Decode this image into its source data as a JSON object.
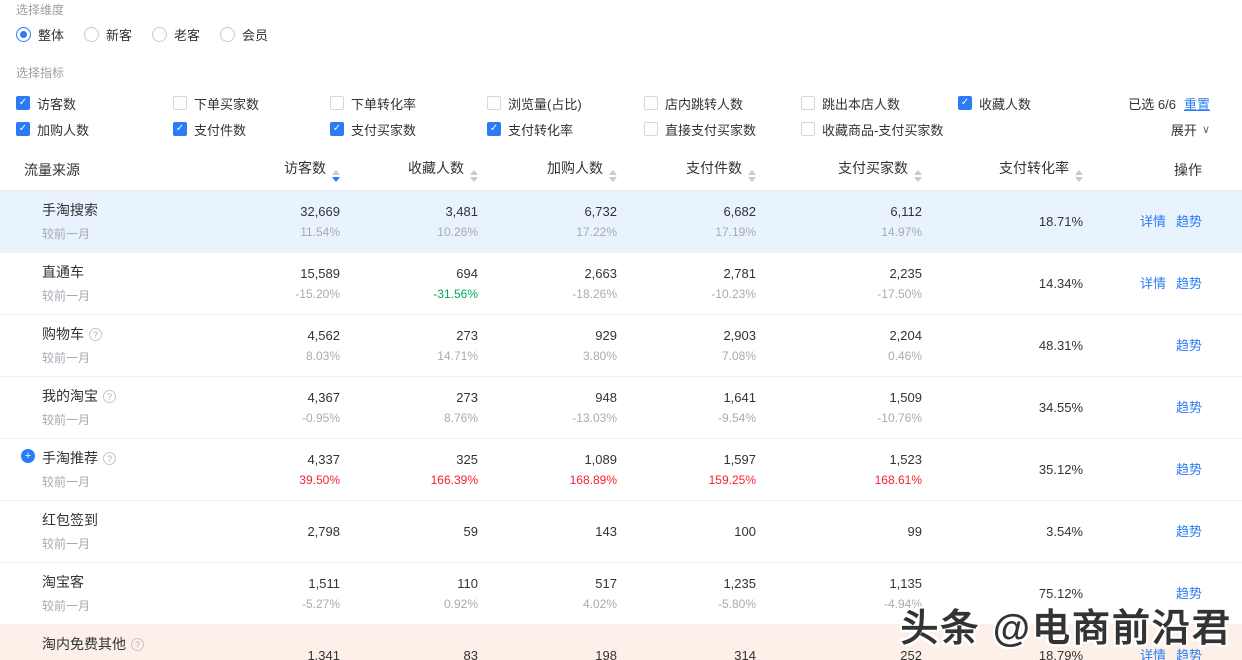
{
  "dimension": {
    "label": "选择维度",
    "options": [
      {
        "label": "整体",
        "selected": true
      },
      {
        "label": "新客",
        "selected": false
      },
      {
        "label": "老客",
        "selected": false
      },
      {
        "label": "会员",
        "selected": false
      }
    ]
  },
  "metrics": {
    "label": "选择指标",
    "selected_info": "已选 6/6",
    "reset_label": "重置",
    "expand_label": "展开",
    "rows": [
      [
        {
          "label": "访客数",
          "checked": true
        },
        {
          "label": "下单买家数",
          "checked": false
        },
        {
          "label": "下单转化率",
          "checked": false
        },
        {
          "label": "浏览量(占比)",
          "checked": false
        },
        {
          "label": "店内跳转人数",
          "checked": false
        },
        {
          "label": "跳出本店人数",
          "checked": false
        },
        {
          "label": "收藏人数",
          "checked": true
        }
      ],
      [
        {
          "label": "加购人数",
          "checked": true
        },
        {
          "label": "支付件数",
          "checked": true
        },
        {
          "label": "支付买家数",
          "checked": true
        },
        {
          "label": "支付转化率",
          "checked": true
        },
        {
          "label": "直接支付买家数",
          "checked": false
        },
        {
          "label": "收藏商品-支付买家数",
          "checked": false
        }
      ]
    ]
  },
  "table": {
    "compare_label": "较前一月",
    "columns": [
      {
        "label": "流量来源",
        "sort": false
      },
      {
        "label": "访客数",
        "sort": true,
        "dir": "desc"
      },
      {
        "label": "收藏人数",
        "sort": true
      },
      {
        "label": "加购人数",
        "sort": true
      },
      {
        "label": "支付件数",
        "sort": true
      },
      {
        "label": "支付买家数",
        "sort": true
      },
      {
        "label": "支付转化率",
        "sort": true
      },
      {
        "label": "操作",
        "sort": false
      }
    ],
    "rows": [
      {
        "name": "手淘搜索",
        "help": false,
        "plus": false,
        "bg": "blue",
        "metrics": [
          {
            "v": "32,669",
            "c": "11.54%",
            "cc": "gray"
          },
          {
            "v": "3,481",
            "c": "10.26%",
            "cc": "gray"
          },
          {
            "v": "6,732",
            "c": "17.22%",
            "cc": "gray"
          },
          {
            "v": "6,682",
            "c": "17.19%",
            "cc": "gray"
          },
          {
            "v": "6,112",
            "c": "14.97%",
            "cc": "gray"
          }
        ],
        "rate": "18.71%",
        "actions": [
          {
            "label": "详情",
            "kind": "detail"
          },
          {
            "label": "趋势",
            "kind": "trend"
          }
        ]
      },
      {
        "name": "直通车",
        "help": false,
        "plus": false,
        "bg": null,
        "metrics": [
          {
            "v": "15,589",
            "c": "-15.20%",
            "cc": "gray"
          },
          {
            "v": "694",
            "c": "-31.56%",
            "cc": "green"
          },
          {
            "v": "2,663",
            "c": "-18.26%",
            "cc": "gray"
          },
          {
            "v": "2,781",
            "c": "-10.23%",
            "cc": "gray"
          },
          {
            "v": "2,235",
            "c": "-17.50%",
            "cc": "gray"
          }
        ],
        "rate": "14.34%",
        "actions": [
          {
            "label": "详情",
            "kind": "detail"
          },
          {
            "label": "趋势",
            "kind": "trend"
          }
        ]
      },
      {
        "name": "购物车",
        "help": true,
        "plus": false,
        "bg": null,
        "metrics": [
          {
            "v": "4,562",
            "c": "8.03%",
            "cc": "gray"
          },
          {
            "v": "273",
            "c": "14.71%",
            "cc": "gray"
          },
          {
            "v": "929",
            "c": "3.80%",
            "cc": "gray"
          },
          {
            "v": "2,903",
            "c": "7.08%",
            "cc": "gray"
          },
          {
            "v": "2,204",
            "c": "0.46%",
            "cc": "gray"
          }
        ],
        "rate": "48.31%",
        "actions": [
          {
            "label": "趋势",
            "kind": "trend"
          }
        ]
      },
      {
        "name": "我的淘宝",
        "help": true,
        "plus": false,
        "bg": null,
        "metrics": [
          {
            "v": "4,367",
            "c": "-0.95%",
            "cc": "gray"
          },
          {
            "v": "273",
            "c": "8.76%",
            "cc": "gray"
          },
          {
            "v": "948",
            "c": "-13.03%",
            "cc": "gray"
          },
          {
            "v": "1,641",
            "c": "-9.54%",
            "cc": "gray"
          },
          {
            "v": "1,509",
            "c": "-10.76%",
            "cc": "gray"
          }
        ],
        "rate": "34.55%",
        "actions": [
          {
            "label": "趋势",
            "kind": "trend"
          }
        ]
      },
      {
        "name": "手淘推荐",
        "help": true,
        "plus": true,
        "bg": null,
        "metrics": [
          {
            "v": "4,337",
            "c": "39.50%",
            "cc": "red"
          },
          {
            "v": "325",
            "c": "166.39%",
            "cc": "red"
          },
          {
            "v": "1,089",
            "c": "168.89%",
            "cc": "red"
          },
          {
            "v": "1,597",
            "c": "159.25%",
            "cc": "red"
          },
          {
            "v": "1,523",
            "c": "168.61%",
            "cc": "red"
          }
        ],
        "rate": "35.12%",
        "actions": [
          {
            "label": "趋势",
            "kind": "trend"
          }
        ]
      },
      {
        "name": "红包签到",
        "help": false,
        "plus": false,
        "bg": null,
        "metrics": [
          {
            "v": "2,798",
            "c": null
          },
          {
            "v": "59",
            "c": null
          },
          {
            "v": "143",
            "c": null
          },
          {
            "v": "100",
            "c": null
          },
          {
            "v": "99",
            "c": null
          }
        ],
        "rate": "3.54%",
        "actions": [
          {
            "label": "趋势",
            "kind": "trend"
          }
        ]
      },
      {
        "name": "淘宝客",
        "help": false,
        "plus": false,
        "bg": null,
        "metrics": [
          {
            "v": "1,511",
            "c": "-5.27%",
            "cc": "gray"
          },
          {
            "v": "110",
            "c": "0.92%",
            "cc": "gray"
          },
          {
            "v": "517",
            "c": "4.02%",
            "cc": "gray"
          },
          {
            "v": "1,235",
            "c": "-5.80%",
            "cc": "gray"
          },
          {
            "v": "1,135",
            "c": "-4.94%",
            "cc": "gray"
          }
        ],
        "rate": "75.12%",
        "actions": [
          {
            "label": "趋势",
            "kind": "trend"
          }
        ]
      },
      {
        "name": "淘内免费其他",
        "help": true,
        "plus": false,
        "bg": "pink",
        "metrics": [
          {
            "v": "1,341",
            "c": null
          },
          {
            "v": "83",
            "c": null
          },
          {
            "v": "198",
            "c": null
          },
          {
            "v": "314",
            "c": null
          },
          {
            "v": "252",
            "c": null
          }
        ],
        "rate": "18.79%",
        "actions": [
          {
            "label": "详情",
            "kind": "detail"
          },
          {
            "label": "趋势",
            "kind": "trend"
          }
        ]
      }
    ]
  },
  "icons": {
    "check": "✓",
    "help": "?",
    "plus": "+",
    "chevron_down": "∨"
  },
  "watermark": "头条 @电商前沿君",
  "colors": {
    "accent": "#2c7bf6",
    "green": "#00a854",
    "red": "#f5222d",
    "muted_change": "#a6abb2",
    "row_highlight_blue": "#e9f3fd",
    "row_highlight_pink": "#fdf0e9"
  }
}
